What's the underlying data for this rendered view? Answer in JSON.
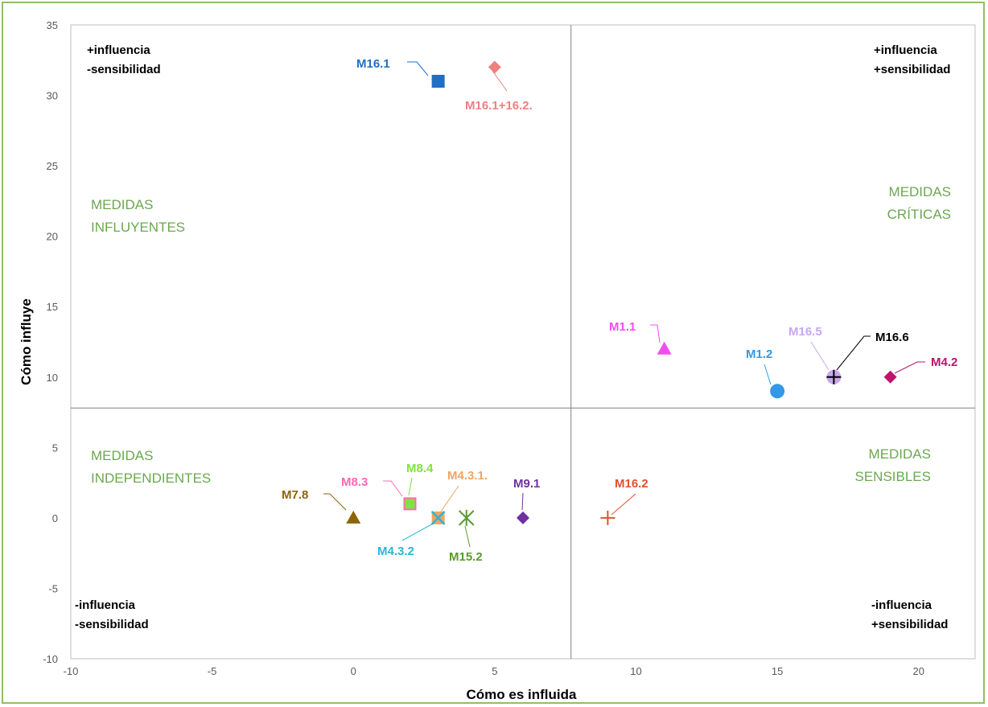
{
  "chart_data": {
    "type": "scatter",
    "xlabel": "Cómo es influida",
    "ylabel": "Cómo influye",
    "xlim": [
      -10,
      22
    ],
    "ylim": [
      -10,
      35
    ],
    "xticks": [
      "-10",
      "-5",
      "0",
      "5",
      "10",
      "15",
      "20"
    ],
    "yticks": [
      "-10",
      "-5",
      "0",
      "5",
      "10",
      "15",
      "20",
      "25",
      "30",
      "35"
    ],
    "divider_x": 7.7,
    "divider_y": 7.8,
    "grid": false,
    "quadrant_labels": [
      {
        "lines": [
          "MEDIDAS",
          "INFLUYENTES"
        ],
        "position": "top-left"
      },
      {
        "lines": [
          "MEDIDAS",
          "CRÍTICAS"
        ],
        "position": "top-right"
      },
      {
        "lines": [
          "MEDIDAS",
          "INDEPENDIENTES"
        ],
        "position": "bottom-left"
      },
      {
        "lines": [
          "MEDIDAS",
          "SENSIBLES"
        ],
        "position": "bottom-right"
      }
    ],
    "corner_labels": [
      {
        "lines": [
          "+influencia",
          "-sensibilidad"
        ],
        "position": "top-left"
      },
      {
        "lines": [
          "+influencia",
          "+sensibilidad"
        ],
        "position": "top-right"
      },
      {
        "lines": [
          "-influencia",
          "-sensibilidad"
        ],
        "position": "bottom-left"
      },
      {
        "lines": [
          "-influencia",
          "+sensibilidad"
        ],
        "position": "bottom-right"
      }
    ],
    "points": [
      {
        "label": "M16.1",
        "x": 3,
        "y": 31,
        "marker": "square",
        "color": "#1f6fc4"
      },
      {
        "label": "M16.1+16.2.",
        "x": 5,
        "y": 32,
        "marker": "diamond",
        "color": "#f08080"
      },
      {
        "label": "M1.1",
        "x": 11,
        "y": 12,
        "marker": "triangle",
        "color": "#f04ff0"
      },
      {
        "label": "M1.2",
        "x": 15,
        "y": 9,
        "marker": "circle",
        "color": "#3399e6"
      },
      {
        "label": "M16.5",
        "x": 17,
        "y": 10,
        "marker": "circle",
        "color": "#c9a6ee"
      },
      {
        "label": "M16.6",
        "x": 17,
        "y": 10,
        "marker": "plus",
        "color": "#000000"
      },
      {
        "label": "M4.2",
        "x": 19,
        "y": 10,
        "marker": "diamond",
        "color": "#c0136c"
      },
      {
        "label": "M7.8",
        "x": 0,
        "y": 0,
        "marker": "triangle",
        "color": "#8b6508"
      },
      {
        "label": "M8.3",
        "x": 2,
        "y": 1,
        "marker": "square",
        "color": "#ff69b4"
      },
      {
        "label": "M8.4",
        "x": 2,
        "y": 1,
        "marker": "square-small",
        "color": "#7fe43c"
      },
      {
        "label": "M4.3.1.",
        "x": 3,
        "y": 0,
        "marker": "square",
        "color": "#f4a460"
      },
      {
        "label": "M4.3.2",
        "x": 3,
        "y": 0,
        "marker": "x",
        "color": "#29b6d9"
      },
      {
        "label": "M15.2",
        "x": 4,
        "y": 0,
        "marker": "star",
        "color": "#5a9a2c"
      },
      {
        "label": "M9.1",
        "x": 6,
        "y": 0,
        "marker": "diamond",
        "color": "#7030a0"
      },
      {
        "label": "M16.2",
        "x": 9,
        "y": 0,
        "marker": "plus",
        "color": "#e0502e"
      }
    ]
  }
}
